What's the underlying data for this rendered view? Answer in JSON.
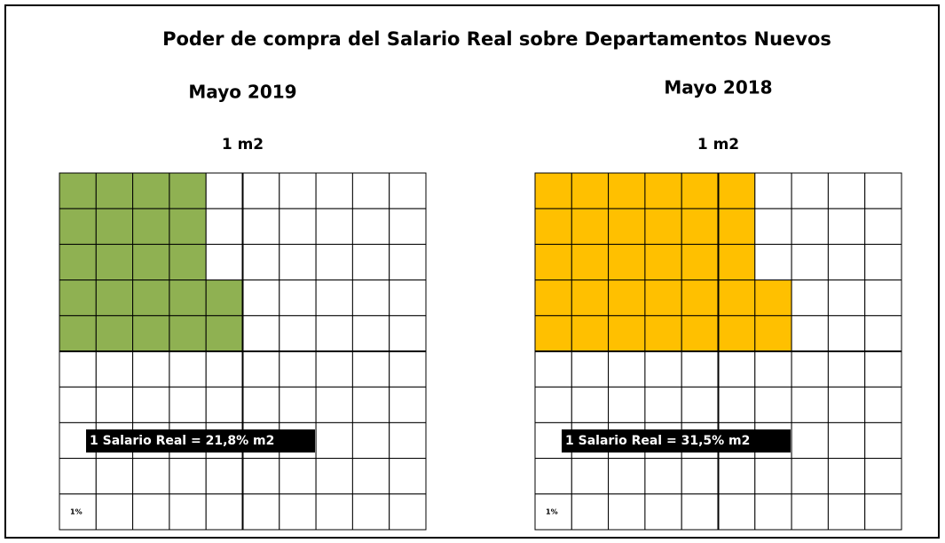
{
  "title": "Poder de compra del Salario Real sobre Departamentos Nuevos",
  "chart_data": [
    {
      "type": "waffle",
      "title": "Mayo 2019",
      "subtitle": "1 m2",
      "value": 21.8,
      "color": "#8fb152",
      "annotation": "1 Salario Real = 21,8% m2",
      "cell_label": "1%"
    },
    {
      "type": "waffle",
      "title": "Mayo 2018",
      "subtitle": "1 m2",
      "value": 31.5,
      "color": "#ffc000",
      "annotation": "1 Salario Real = 31,5% m2",
      "cell_label": "1%"
    }
  ]
}
